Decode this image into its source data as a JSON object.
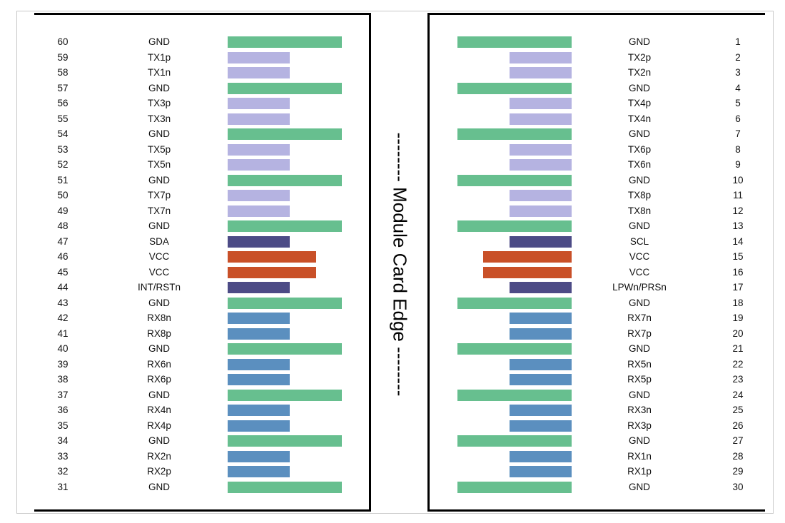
{
  "edge_label": "-------- Module Card Edge --------",
  "colors": {
    "GND": "#67bf8f",
    "TX": "#b5b3e1",
    "RX": "#5b8fbf",
    "CTRL": "#4c4b86",
    "VCC": "#c95028"
  },
  "left_pins": [
    {
      "pin": "60",
      "signal": "GND",
      "type": "GND"
    },
    {
      "pin": "59",
      "signal": "TX1p",
      "type": "TX"
    },
    {
      "pin": "58",
      "signal": "TX1n",
      "type": "TX"
    },
    {
      "pin": "57",
      "signal": "GND",
      "type": "GND"
    },
    {
      "pin": "56",
      "signal": "TX3p",
      "type": "TX"
    },
    {
      "pin": "55",
      "signal": "TX3n",
      "type": "TX"
    },
    {
      "pin": "54",
      "signal": "GND",
      "type": "GND"
    },
    {
      "pin": "53",
      "signal": "TX5p",
      "type": "TX"
    },
    {
      "pin": "52",
      "signal": "TX5n",
      "type": "TX"
    },
    {
      "pin": "51",
      "signal": "GND",
      "type": "GND"
    },
    {
      "pin": "50",
      "signal": "TX7p",
      "type": "TX"
    },
    {
      "pin": "49",
      "signal": "TX7n",
      "type": "TX"
    },
    {
      "pin": "48",
      "signal": "GND",
      "type": "GND"
    },
    {
      "pin": "47",
      "signal": "SDA",
      "type": "CTRL"
    },
    {
      "pin": "46",
      "signal": "VCC",
      "type": "VCC"
    },
    {
      "pin": "45",
      "signal": "VCC",
      "type": "VCC"
    },
    {
      "pin": "44",
      "signal": "INT/RSTn",
      "type": "CTRL"
    },
    {
      "pin": "43",
      "signal": "GND",
      "type": "GND"
    },
    {
      "pin": "42",
      "signal": "RX8n",
      "type": "RX"
    },
    {
      "pin": "41",
      "signal": "RX8p",
      "type": "RX"
    },
    {
      "pin": "40",
      "signal": "GND",
      "type": "GND"
    },
    {
      "pin": "39",
      "signal": "RX6n",
      "type": "RX"
    },
    {
      "pin": "38",
      "signal": "RX6p",
      "type": "RX"
    },
    {
      "pin": "37",
      "signal": "GND",
      "type": "GND"
    },
    {
      "pin": "36",
      "signal": "RX4n",
      "type": "RX"
    },
    {
      "pin": "35",
      "signal": "RX4p",
      "type": "RX"
    },
    {
      "pin": "34",
      "signal": "GND",
      "type": "GND"
    },
    {
      "pin": "33",
      "signal": "RX2n",
      "type": "RX"
    },
    {
      "pin": "32",
      "signal": "RX2p",
      "type": "RX"
    },
    {
      "pin": "31",
      "signal": "GND",
      "type": "GND"
    }
  ],
  "right_pins": [
    {
      "pin": "1",
      "signal": "GND",
      "type": "GND"
    },
    {
      "pin": "2",
      "signal": "TX2p",
      "type": "TX"
    },
    {
      "pin": "3",
      "signal": "TX2n",
      "type": "TX"
    },
    {
      "pin": "4",
      "signal": "GND",
      "type": "GND"
    },
    {
      "pin": "5",
      "signal": "TX4p",
      "type": "TX"
    },
    {
      "pin": "6",
      "signal": "TX4n",
      "type": "TX"
    },
    {
      "pin": "7",
      "signal": "GND",
      "type": "GND"
    },
    {
      "pin": "8",
      "signal": "TX6p",
      "type": "TX"
    },
    {
      "pin": "9",
      "signal": "TX6n",
      "type": "TX"
    },
    {
      "pin": "10",
      "signal": "GND",
      "type": "GND"
    },
    {
      "pin": "11",
      "signal": "TX8p",
      "type": "TX"
    },
    {
      "pin": "12",
      "signal": "TX8n",
      "type": "TX"
    },
    {
      "pin": "13",
      "signal": "GND",
      "type": "GND"
    },
    {
      "pin": "14",
      "signal": "SCL",
      "type": "CTRL"
    },
    {
      "pin": "15",
      "signal": "VCC",
      "type": "VCC"
    },
    {
      "pin": "16",
      "signal": "VCC",
      "type": "VCC"
    },
    {
      "pin": "17",
      "signal": "LPWn/PRSn",
      "type": "CTRL"
    },
    {
      "pin": "18",
      "signal": "GND",
      "type": "GND"
    },
    {
      "pin": "19",
      "signal": "RX7n",
      "type": "RX"
    },
    {
      "pin": "20",
      "signal": "RX7p",
      "type": "RX"
    },
    {
      "pin": "21",
      "signal": "GND",
      "type": "GND"
    },
    {
      "pin": "22",
      "signal": "RX5n",
      "type": "RX"
    },
    {
      "pin": "23",
      "signal": "RX5p",
      "type": "RX"
    },
    {
      "pin": "24",
      "signal": "GND",
      "type": "GND"
    },
    {
      "pin": "25",
      "signal": "RX3n",
      "type": "RX"
    },
    {
      "pin": "26",
      "signal": "RX3p",
      "type": "RX"
    },
    {
      "pin": "27",
      "signal": "GND",
      "type": "GND"
    },
    {
      "pin": "28",
      "signal": "RX1n",
      "type": "RX"
    },
    {
      "pin": "29",
      "signal": "RX1p",
      "type": "RX"
    },
    {
      "pin": "30",
      "signal": "GND",
      "type": "GND"
    }
  ]
}
